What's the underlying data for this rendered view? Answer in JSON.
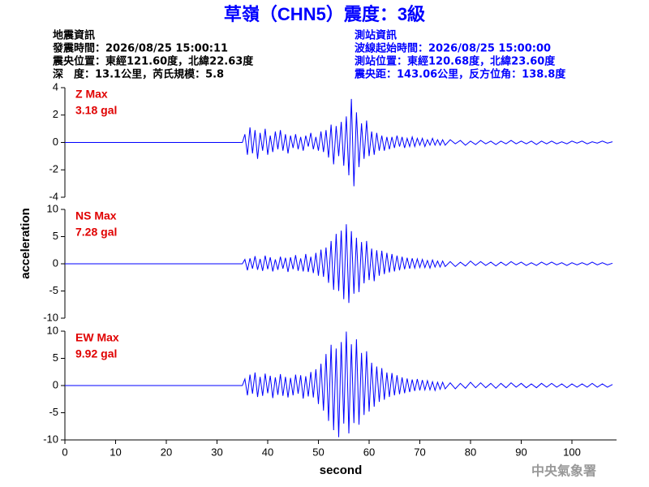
{
  "header": {
    "title": "草嶺（CHN5）震度：3級",
    "info_left": [
      "地震資訊",
      "發震時間：2026/08/25 15:00:11",
      "震央位置：東經121.60度，北緯22.63度",
      "深　度：13.1公里，芮氏規模：5.8"
    ],
    "info_right": [
      "測站資訊",
      "波線起始時間：2026/08/25 15:00:00",
      "測站位置：東經120.68度，北緯23.60度",
      "震央距：143.06公里，反方位角：138.8度"
    ],
    "watermark": "中央氣象署"
  },
  "chart_data": [
    {
      "type": "line",
      "label": "Z Max",
      "peak_label": "3.18 gal",
      "color": "#0000ff",
      "xlim": [
        0,
        108.8
      ],
      "ylim": [
        -4,
        4
      ],
      "yticks": [
        -4,
        -2,
        0,
        2,
        4
      ],
      "x": [
        0,
        35,
        35.5,
        36,
        36.5,
        37,
        37.5,
        38,
        38.5,
        39,
        39.5,
        40,
        40.5,
        41,
        41.5,
        42,
        42.5,
        43,
        43.5,
        44,
        44.5,
        45,
        45.5,
        46,
        46.5,
        47,
        47.5,
        48,
        48.5,
        49,
        49.5,
        50,
        50.5,
        51,
        51.5,
        52,
        52.5,
        53,
        53.5,
        54,
        54.5,
        55,
        55.5,
        56,
        56.5,
        57,
        57.5,
        58,
        58.5,
        59,
        59.5,
        60,
        60.5,
        61,
        61.5,
        62,
        62.5,
        63,
        63.5,
        64,
        64.5,
        65,
        65.5,
        66,
        66.5,
        67,
        67.5,
        68,
        68.5,
        69,
        69.5,
        70,
        70.5,
        71,
        71.5,
        72,
        72.5,
        73,
        73.5,
        74,
        74.5,
        75,
        76,
        77,
        78,
        79,
        80,
        81,
        82,
        83,
        84,
        85,
        86,
        87,
        88,
        89,
        90,
        91,
        92,
        93,
        94,
        95,
        96,
        97,
        98,
        99,
        100,
        101,
        102,
        103,
        104,
        105,
        106,
        107,
        108
      ],
      "values": [
        0,
        0,
        0.6,
        -0.9,
        1.1,
        -0.8,
        0.9,
        -1.2,
        0.7,
        -0.6,
        1.0,
        -0.9,
        0.5,
        -0.7,
        0.8,
        -0.5,
        0.9,
        -0.6,
        0.6,
        -0.8,
        0.5,
        -0.4,
        0.6,
        -0.5,
        0.4,
        -0.6,
        0.5,
        -0.3,
        0.7,
        -0.5,
        0.4,
        -0.6,
        0.8,
        -0.7,
        0.9,
        -1.1,
        1.3,
        -1.6,
        1.2,
        -1.0,
        1.5,
        -1.7,
        1.9,
        -2.4,
        3.18,
        -3.2,
        2.2,
        -1.8,
        1.4,
        -1.2,
        1.6,
        -1.0,
        0.8,
        -0.9,
        0.7,
        -0.6,
        0.5,
        -0.6,
        0.4,
        -0.5,
        0.4,
        -0.4,
        0.5,
        -0.3,
        0.4,
        -0.4,
        0.3,
        -0.3,
        0.4,
        -0.3,
        0.3,
        -0.2,
        0.3,
        -0.3,
        0.2,
        -0.2,
        0.3,
        -0.2,
        0.2,
        -0.2,
        0.2,
        -0.2,
        0.2,
        -0.1,
        0.15,
        -0.2,
        0.1,
        -0.15,
        0.15,
        -0.1,
        0.1,
        -0.15,
        0.1,
        -0.1,
        0.15,
        -0.1,
        0.1,
        -0.1,
        0.1,
        -0.15,
        0.1,
        -0.1,
        0.1,
        -0.1,
        0.05,
        -0.1,
        0.1,
        -0.05,
        0.1,
        -0.1,
        0.05,
        -0.05,
        0.1,
        -0.05,
        0.05
      ]
    },
    {
      "type": "line",
      "label": "NS Max",
      "peak_label": "7.28 gal",
      "color": "#0000ff",
      "ylabel": "acceleration",
      "xlim": [
        0,
        108.8
      ],
      "ylim": [
        -10,
        10
      ],
      "yticks": [
        -10,
        -5,
        0,
        5,
        10
      ],
      "x": [
        0,
        35,
        35.5,
        36,
        36.5,
        37,
        37.5,
        38,
        38.5,
        39,
        39.5,
        40,
        40.5,
        41,
        41.5,
        42,
        42.5,
        43,
        43.5,
        44,
        44.5,
        45,
        45.5,
        46,
        46.5,
        47,
        47.5,
        48,
        48.5,
        49,
        49.5,
        50,
        50.5,
        51,
        51.5,
        52,
        52.5,
        53,
        53.5,
        54,
        54.5,
        55,
        55.5,
        56,
        56.5,
        57,
        57.5,
        58,
        58.5,
        59,
        59.5,
        60,
        60.5,
        61,
        61.5,
        62,
        62.5,
        63,
        63.5,
        64,
        64.5,
        65,
        65.5,
        66,
        66.5,
        67,
        67.5,
        68,
        68.5,
        69,
        69.5,
        70,
        70.5,
        71,
        71.5,
        72,
        72.5,
        73,
        73.5,
        74,
        74.5,
        75,
        76,
        77,
        78,
        79,
        80,
        81,
        82,
        83,
        84,
        85,
        86,
        87,
        88,
        89,
        90,
        91,
        92,
        93,
        94,
        95,
        96,
        97,
        98,
        99,
        100,
        101,
        102,
        103,
        104,
        105,
        106,
        107,
        108
      ],
      "values": [
        0,
        0,
        0.8,
        -1.2,
        1.0,
        -0.9,
        1.4,
        -1.1,
        0.9,
        -1.3,
        1.5,
        -1.0,
        1.2,
        -1.4,
        0.8,
        -1.1,
        1.3,
        -0.9,
        1.1,
        -1.5,
        1.2,
        -1.0,
        1.6,
        -1.3,
        1.0,
        -1.4,
        1.8,
        -1.5,
        1.3,
        -1.7,
        2.0,
        -2.2,
        2.6,
        -2.4,
        3.0,
        -3.5,
        4.2,
        -4.8,
        5.5,
        -5.0,
        6.1,
        -6.5,
        7.28,
        -7.2,
        6.0,
        -5.5,
        4.8,
        -5.2,
        4.0,
        -3.6,
        4.2,
        -3.0,
        2.8,
        -3.2,
        2.5,
        -2.2,
        2.4,
        -1.9,
        2.0,
        -1.6,
        1.8,
        -1.4,
        1.5,
        -1.2,
        1.3,
        -1.0,
        1.1,
        -0.9,
        1.0,
        -0.8,
        0.9,
        -0.7,
        0.8,
        -0.7,
        0.6,
        -0.8,
        0.7,
        -0.6,
        0.5,
        -0.6,
        0.5,
        -0.5,
        0.4,
        -0.5,
        0.3,
        -0.4,
        0.5,
        -0.3,
        0.4,
        -0.3,
        0.3,
        -0.4,
        0.3,
        -0.3,
        0.4,
        -0.2,
        0.3,
        -0.3,
        0.2,
        -0.3,
        0.3,
        -0.2,
        0.3,
        -0.2,
        0.2,
        -0.3,
        0.2,
        -0.2,
        0.2,
        -0.2,
        0.3,
        -0.2,
        0.2,
        -0.2,
        0.1
      ]
    },
    {
      "type": "line",
      "label": "EW Max",
      "peak_label": "9.92 gal",
      "color": "#0000ff",
      "xlabel": "second",
      "xlim": [
        0,
        108.8
      ],
      "xticks": [
        0,
        10,
        20,
        30,
        40,
        50,
        60,
        70,
        80,
        90,
        100
      ],
      "ylim": [
        -10,
        10
      ],
      "yticks": [
        -10,
        -5,
        0,
        5,
        10
      ],
      "x": [
        0,
        35,
        35.5,
        36,
        36.5,
        37,
        37.5,
        38,
        38.5,
        39,
        39.5,
        40,
        40.5,
        41,
        41.5,
        42,
        42.5,
        43,
        43.5,
        44,
        44.5,
        45,
        45.5,
        46,
        46.5,
        47,
        47.5,
        48,
        48.5,
        49,
        49.5,
        50,
        50.5,
        51,
        51.5,
        52,
        52.5,
        53,
        53.5,
        54,
        54.5,
        55,
        55.5,
        56,
        56.5,
        57,
        57.5,
        58,
        58.5,
        59,
        59.5,
        60,
        60.5,
        61,
        61.5,
        62,
        62.5,
        63,
        63.5,
        64,
        64.5,
        65,
        65.5,
        66,
        66.5,
        67,
        67.5,
        68,
        68.5,
        69,
        69.5,
        70,
        70.5,
        71,
        71.5,
        72,
        72.5,
        73,
        73.5,
        74,
        74.5,
        75,
        76,
        77,
        78,
        79,
        80,
        81,
        82,
        83,
        84,
        85,
        86,
        87,
        88,
        89,
        90,
        91,
        92,
        93,
        94,
        95,
        96,
        97,
        98,
        99,
        100,
        101,
        102,
        103,
        104,
        105,
        106,
        107,
        108
      ],
      "values": [
        0,
        0,
        1.2,
        -1.8,
        2.0,
        -1.5,
        2.4,
        -2.1,
        1.6,
        -1.9,
        2.2,
        -1.4,
        1.8,
        -2.3,
        1.5,
        -1.7,
        2.1,
        -1.9,
        1.6,
        -2.2,
        1.4,
        -1.8,
        2.0,
        -1.5,
        1.9,
        -2.4,
        1.7,
        -2.0,
        2.5,
        -2.2,
        3.0,
        -3.4,
        4.0,
        -4.6,
        5.8,
        -6.5,
        7.5,
        -8.2,
        6.8,
        -9.5,
        8.0,
        -7.0,
        9.92,
        -8.8,
        7.6,
        -6.9,
        8.5,
        -7.2,
        6.0,
        -5.4,
        6.3,
        -4.8,
        4.2,
        -3.9,
        3.5,
        -3.0,
        3.2,
        -2.6,
        2.4,
        -2.1,
        2.3,
        -1.8,
        1.9,
        -1.6,
        1.5,
        -1.4,
        1.3,
        -1.2,
        1.1,
        -1.0,
        1.2,
        -0.9,
        1.0,
        -0.8,
        0.9,
        -0.8,
        0.7,
        -0.9,
        0.6,
        -0.7,
        0.6,
        -0.6,
        0.5,
        -0.6,
        0.4,
        -0.5,
        0.6,
        -0.4,
        0.5,
        -0.4,
        0.4,
        -0.5,
        0.4,
        -0.4,
        0.5,
        -0.3,
        0.4,
        -0.4,
        0.3,
        -0.4,
        0.4,
        -0.3,
        0.4,
        -0.3,
        0.3,
        -0.4,
        0.3,
        -0.3,
        0.3,
        -0.3,
        0.4,
        -0.3,
        0.3,
        -0.3,
        0.2
      ]
    }
  ]
}
